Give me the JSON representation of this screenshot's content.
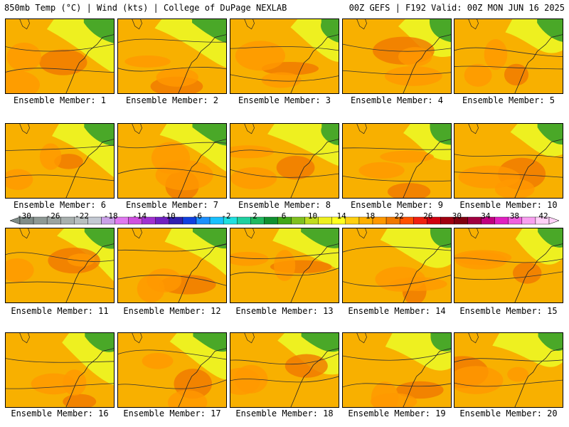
{
  "header": {
    "left": "850mb Temp (°C) | Wind (kts) | College of DuPage NEXLAB",
    "right": "00Z GEFS | F192 Valid: 00Z MON JUN 16 2025"
  },
  "panels": [
    {
      "label": "Ensemble Member: 1"
    },
    {
      "label": "Ensemble Member: 2"
    },
    {
      "label": "Ensemble Member: 3"
    },
    {
      "label": "Ensemble Member: 4"
    },
    {
      "label": "Ensemble Member: 5"
    },
    {
      "label": "Ensemble Member: 6"
    },
    {
      "label": "Ensemble Member: 7"
    },
    {
      "label": "Ensemble Member: 8"
    },
    {
      "label": "Ensemble Member: 9"
    },
    {
      "label": "Ensemble Member: 10"
    },
    {
      "label": "Ensemble Member: 11"
    },
    {
      "label": "Ensemble Member: 12"
    },
    {
      "label": "Ensemble Member: 13"
    },
    {
      "label": "Ensemble Member: 14"
    },
    {
      "label": "Ensemble Member: 15"
    },
    {
      "label": "Ensemble Member: 16"
    },
    {
      "label": "Ensemble Member: 17"
    },
    {
      "label": "Ensemble Member: 18"
    },
    {
      "label": "Ensemble Member: 19"
    },
    {
      "label": "Ensemble Member: 20"
    }
  ],
  "colorbar": {
    "ticks": [
      "-30",
      "-26",
      "-22",
      "-18",
      "-14",
      "-10",
      "-6",
      "-2",
      "2",
      "6",
      "10",
      "14",
      "18",
      "22",
      "26",
      "30",
      "34",
      "38",
      "42"
    ],
    "colors": [
      "#7f8c88",
      "#8e9995",
      "#9aa3a0",
      "#a8b0ae",
      "#b8bfc0",
      "#c3c9d3",
      "#c9a0e8",
      "#e079f0",
      "#d050e0",
      "#a030d0",
      "#7020c0",
      "#3020b0",
      "#1040e0",
      "#1c90ff",
      "#19c0ff",
      "#20e0e0",
      "#20d0a0",
      "#20b860",
      "#109030",
      "#40a818",
      "#80c020",
      "#c0dc20",
      "#eef020",
      "#ffff20",
      "#ffd010",
      "#ffb000",
      "#ff9800",
      "#f07800",
      "#ff5000",
      "#f02010",
      "#d00010",
      "#a00010",
      "#800010",
      "#a00040",
      "#c00080",
      "#e020c0",
      "#f060e0",
      "#f8a0f0",
      "#ffd0f8"
    ]
  }
}
